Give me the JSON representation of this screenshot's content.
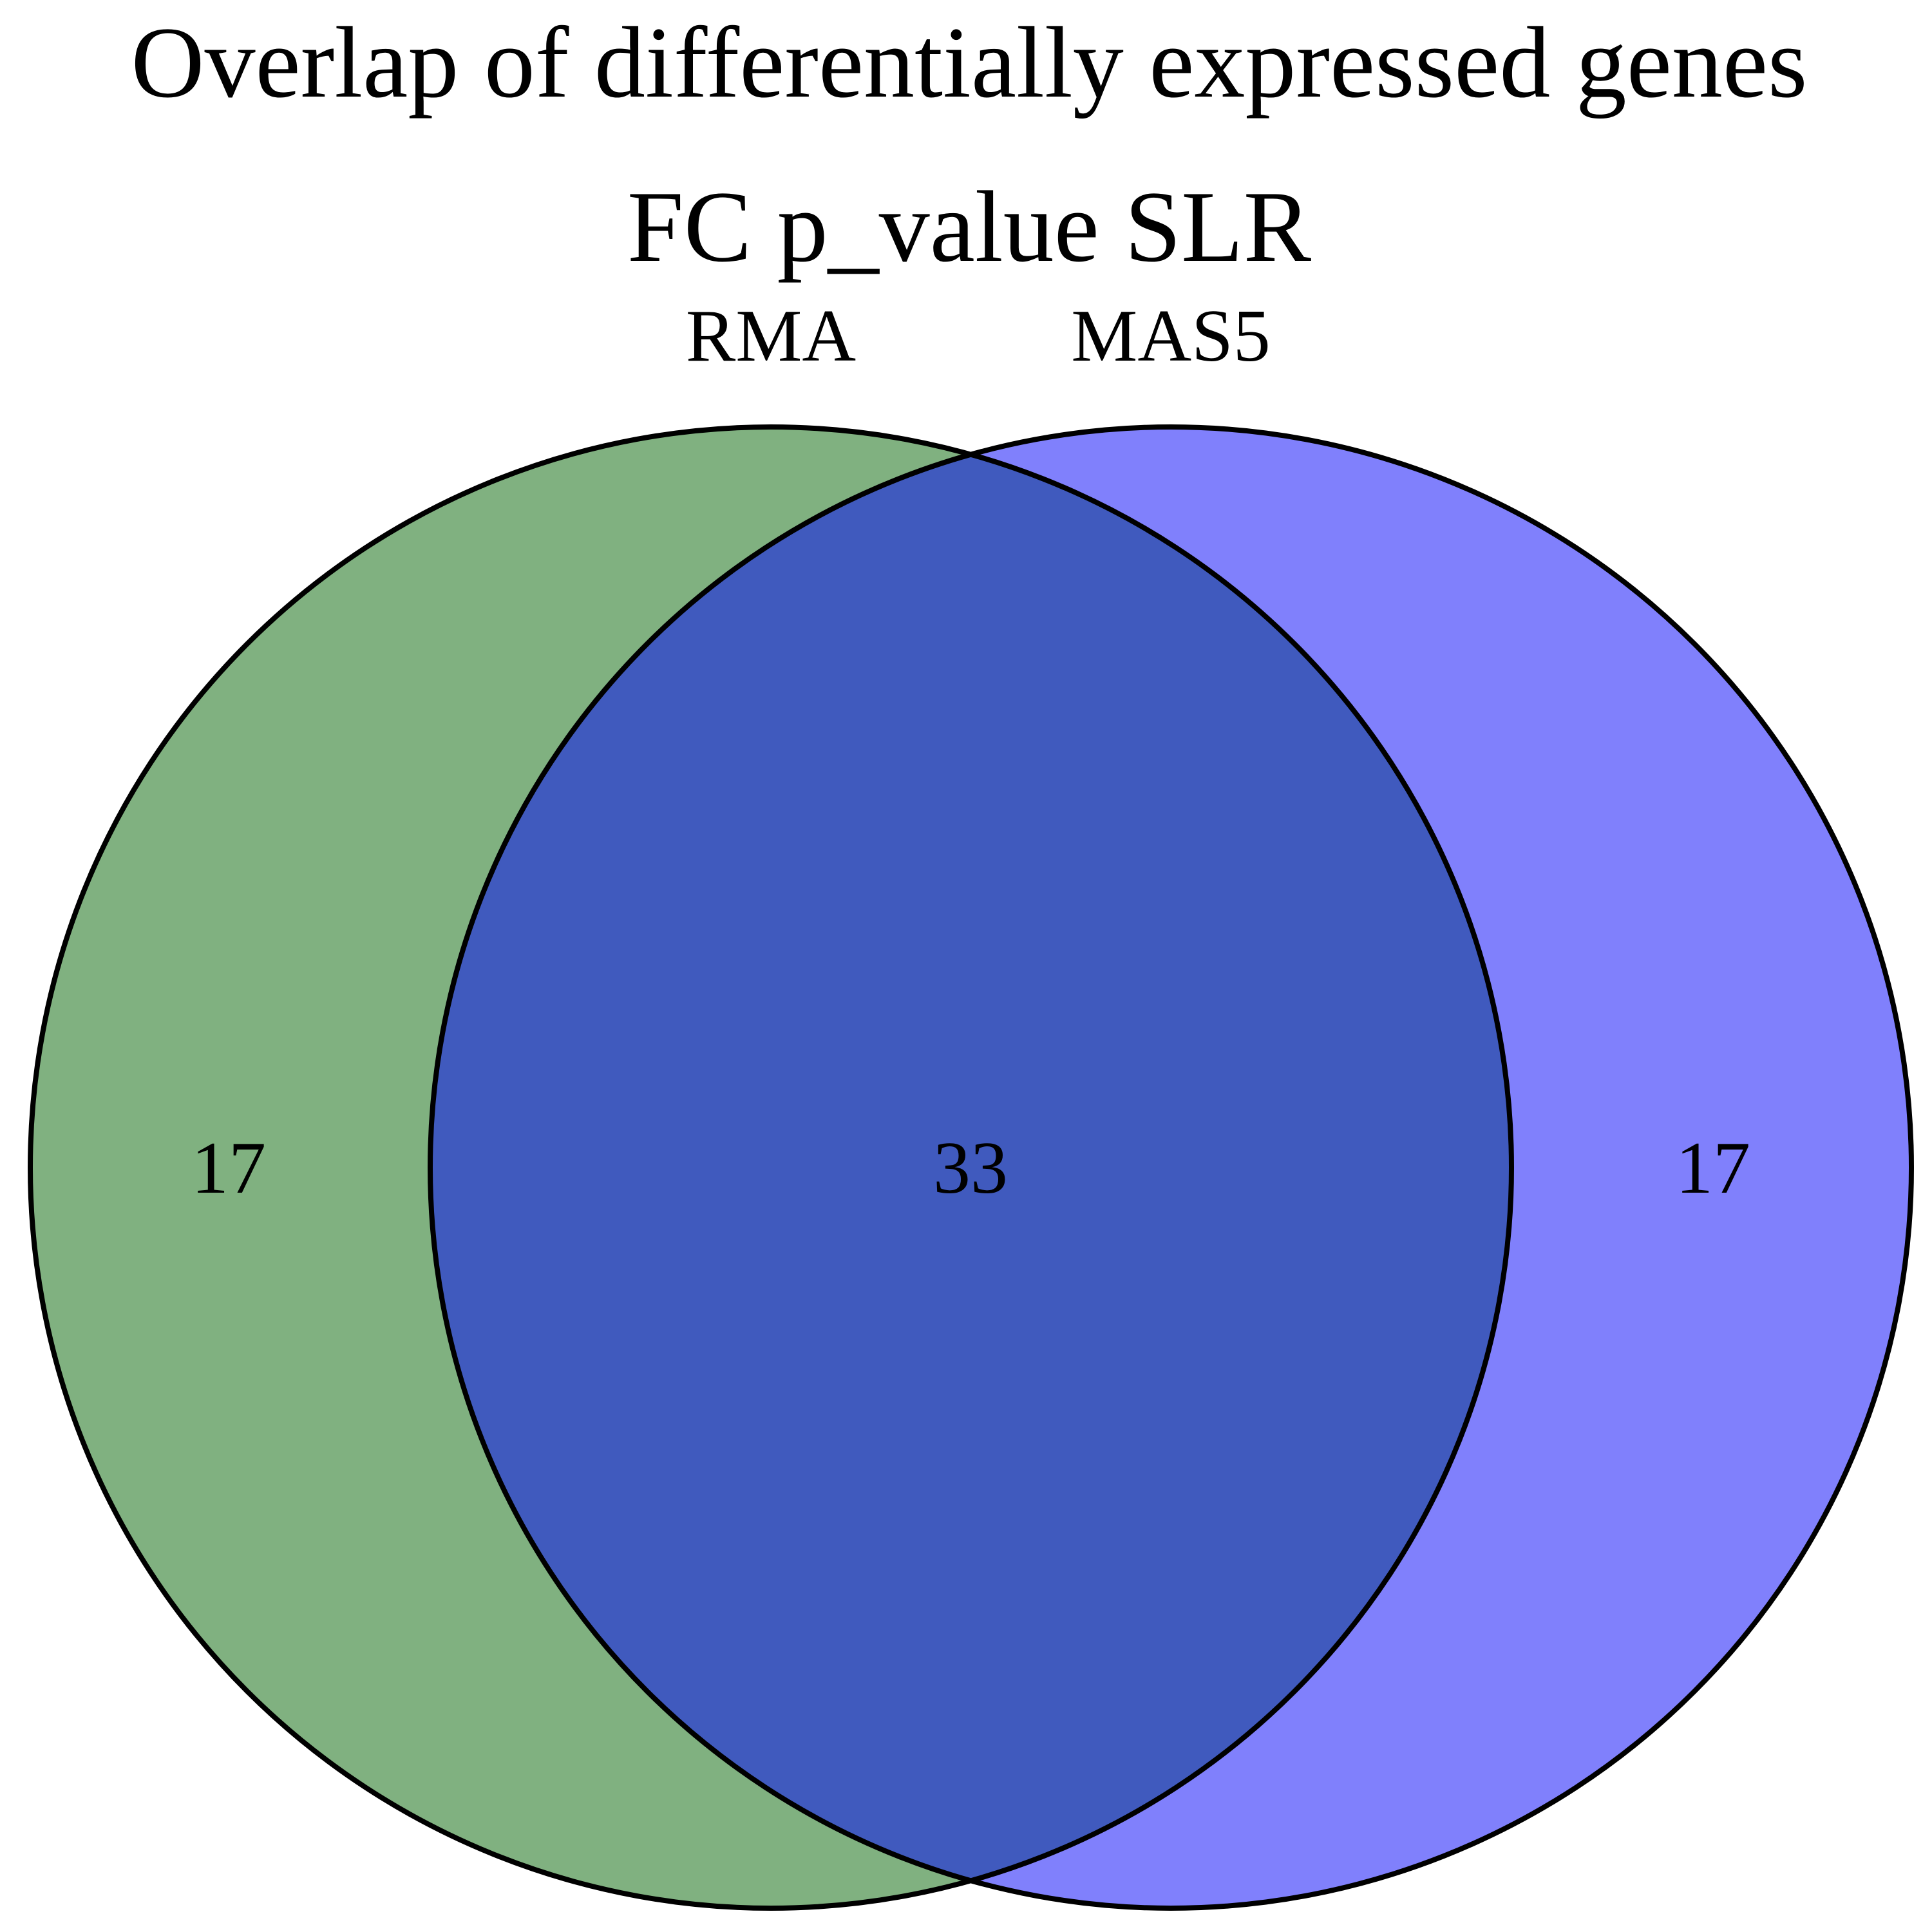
{
  "title": "Overlap of differentially expressed genes",
  "subtitle": "FC p_value SLR",
  "sets": [
    {
      "name": "RMA",
      "color": "#80b180"
    },
    {
      "name": "MAS5",
      "color": "#8080fc"
    }
  ],
  "intersection_color": "#405abe",
  "outline_color": "#000000",
  "counts": {
    "left_only": "17",
    "both": "33",
    "right_only": "17"
  }
}
